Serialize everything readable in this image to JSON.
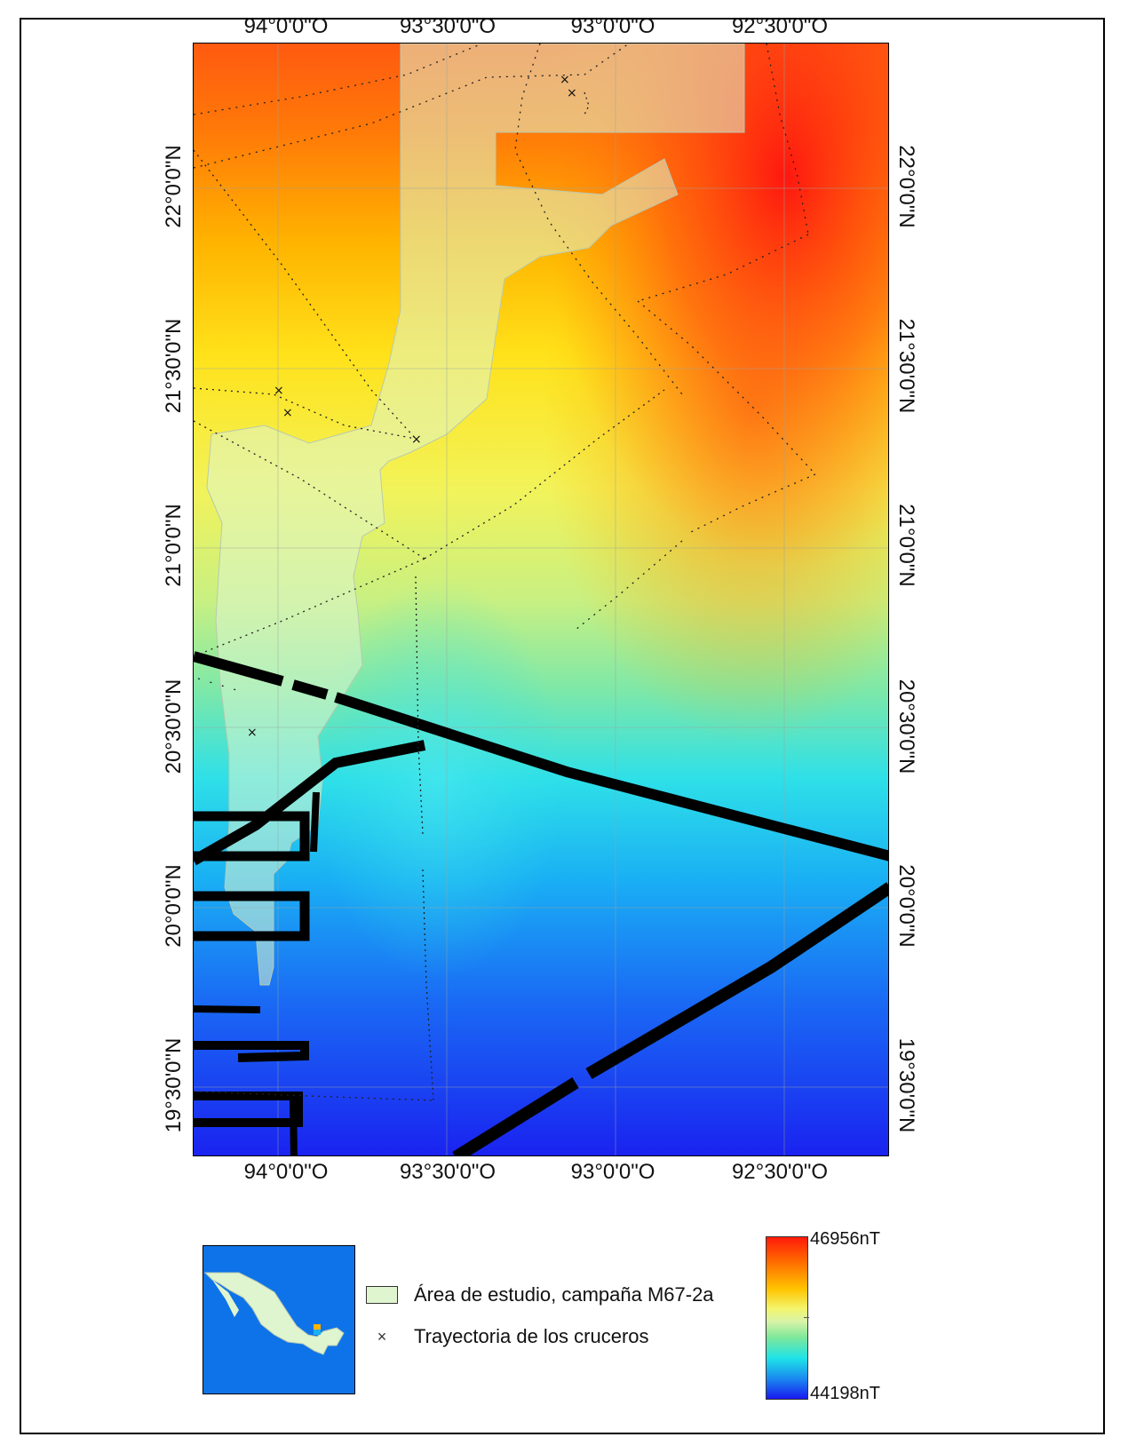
{
  "map": {
    "lon_labels": [
      "94°0'0\"O",
      "93°30'0\"O",
      "93°0'0\"O",
      "92°30'0\"O"
    ],
    "lat_labels": [
      "22°0'0\"N",
      "21°30'0\"N",
      "21°0'0\"N",
      "20°30'0\"N",
      "20°0'0\"N",
      "19°30'0\"N"
    ],
    "field_colors": {
      "high": "#ff1a0a",
      "mid_high": "#ffc400",
      "mid": "#d9f3a8",
      "mid_low": "#1ee3e8",
      "low": "#1a1af0"
    },
    "study_area_color": "#dff5cf",
    "track_color": "#000000"
  },
  "legend": {
    "study_area_label": "Área de estudio, campaña M67-2a",
    "track_symbol": "×",
    "track_label": "Trayectoria de los cruceros"
  },
  "colorbar": {
    "max_label": "46956nT",
    "min_label": "44198nT",
    "max_value": 46956,
    "min_value": 44198,
    "unit": "nT"
  },
  "inset": {
    "ocean_color": "#0e73e8",
    "land_color": "#dff5cf",
    "icon": "mexico-inset-map-icon"
  }
}
